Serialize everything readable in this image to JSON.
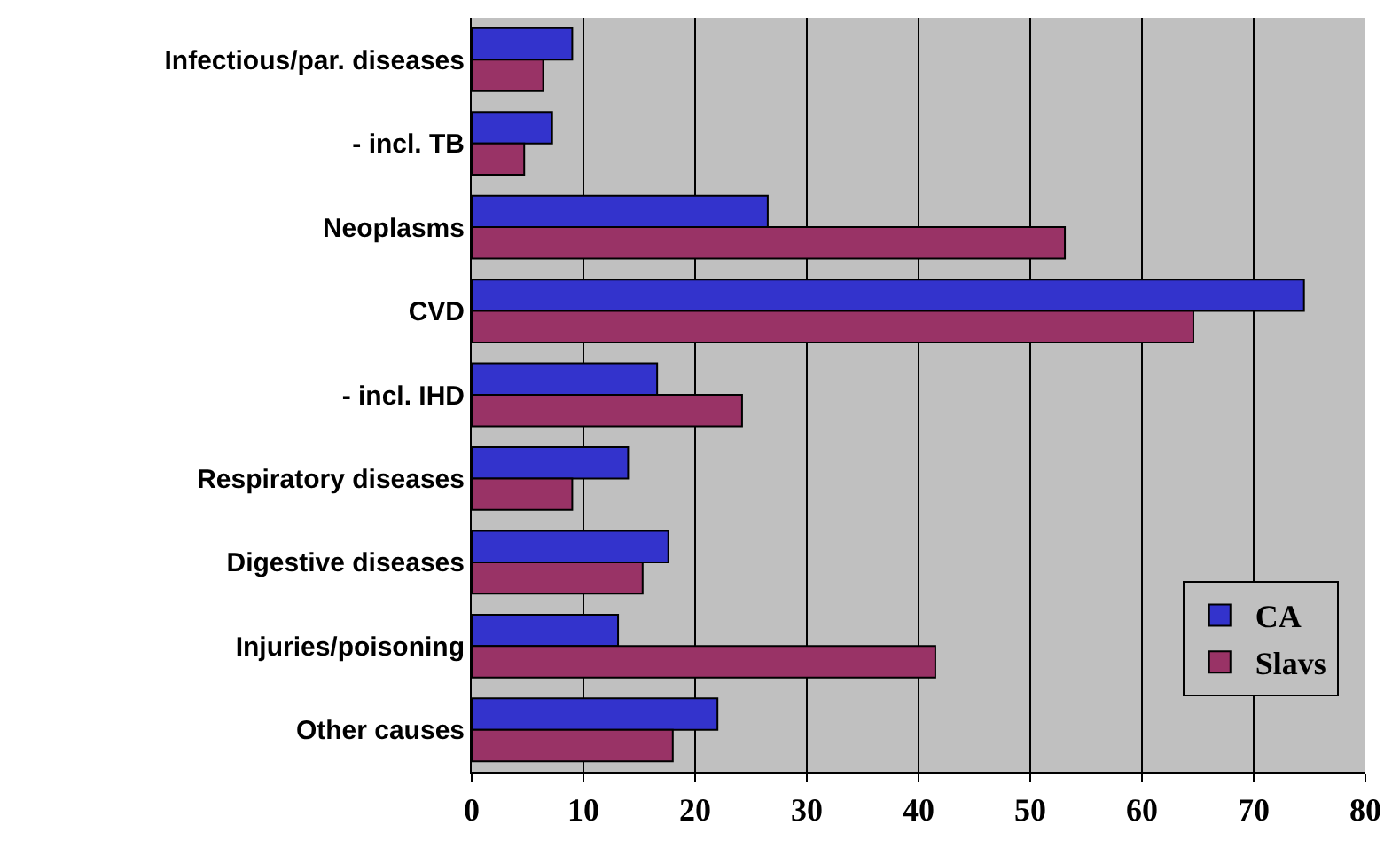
{
  "chart_data": {
    "type": "bar",
    "orientation": "horizontal",
    "categories": [
      "Infectious/par. diseases",
      "- incl. TB",
      "Neoplasms",
      "CVD",
      "- incl. IHD",
      "Respiratory diseases",
      "Digestive diseases",
      "Injuries/poisoning",
      "Other causes"
    ],
    "series": [
      {
        "name": "CA",
        "color": "#3333cc",
        "values": [
          9.0,
          7.2,
          26.5,
          74.5,
          16.6,
          14.0,
          17.6,
          13.1,
          22.0
        ]
      },
      {
        "name": "Slavs",
        "color": "#993366",
        "values": [
          6.4,
          4.7,
          53.1,
          64.6,
          24.2,
          9.0,
          15.3,
          41.5,
          18.0
        ]
      }
    ],
    "xlim": [
      0,
      80
    ],
    "xticks": [
      0,
      10,
      20,
      30,
      40,
      50,
      60,
      70,
      80
    ],
    "grid": "x",
    "legend": "bottom right"
  }
}
